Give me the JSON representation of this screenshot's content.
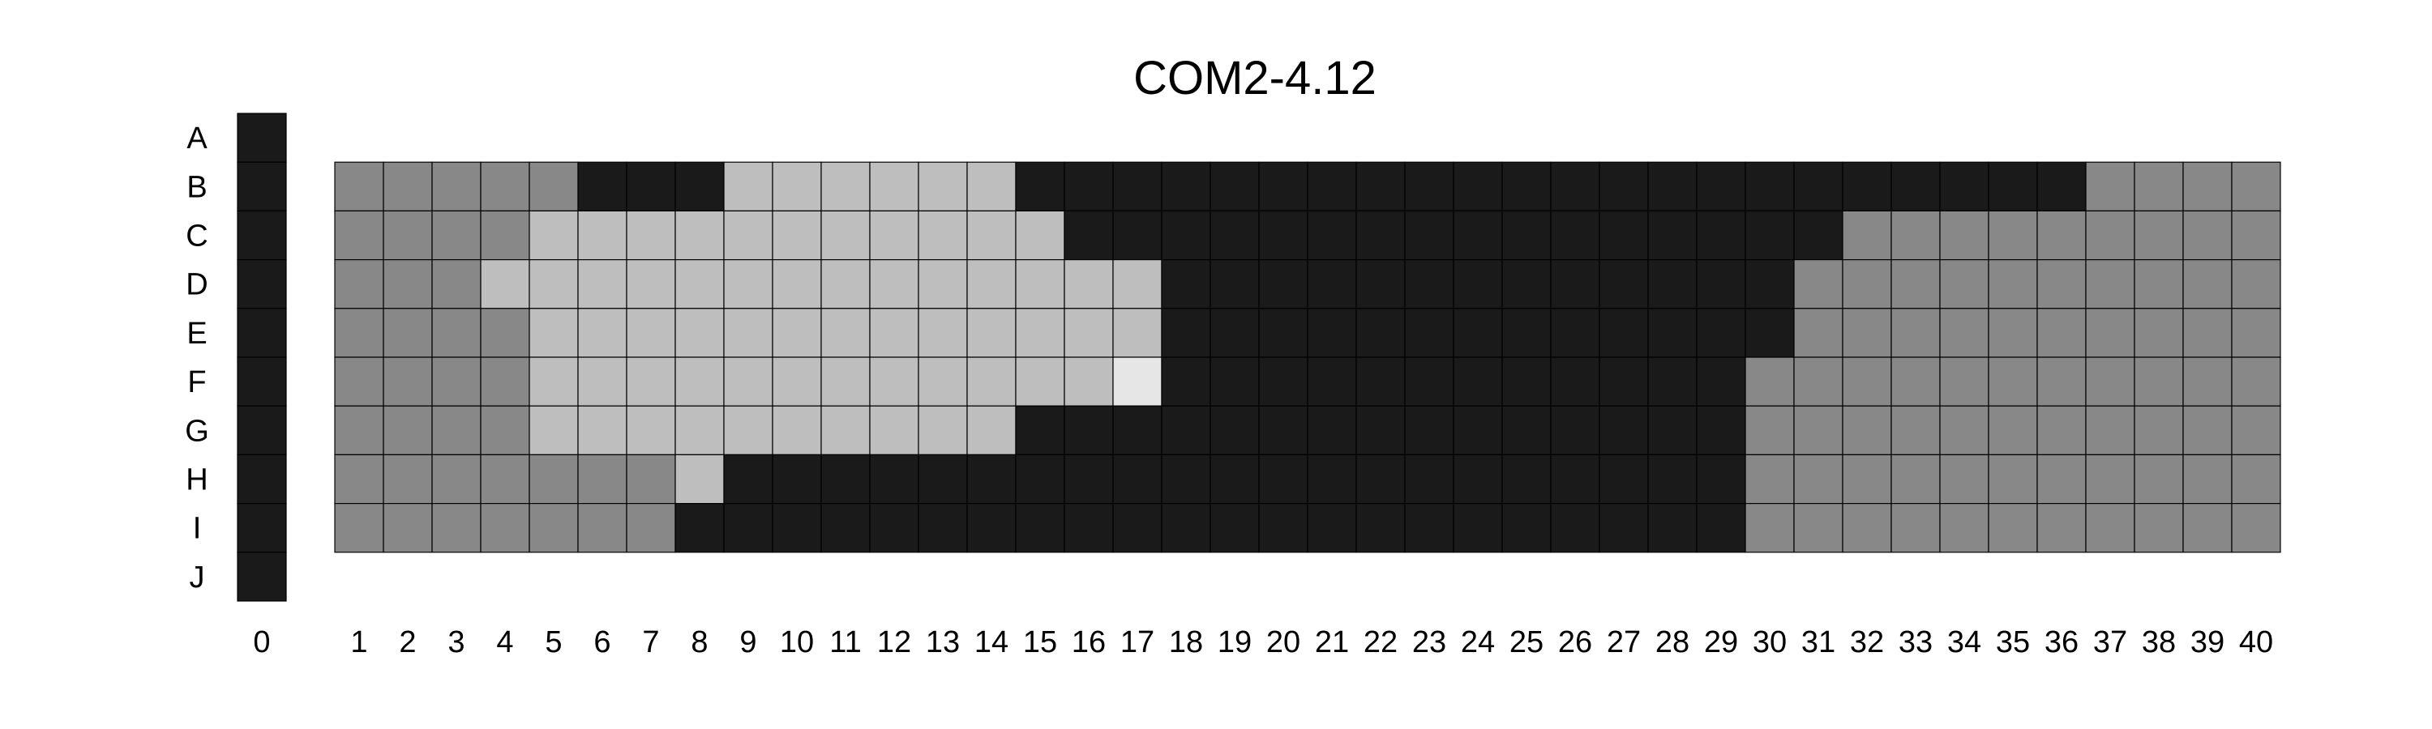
{
  "chart_data": {
    "type": "heatmap",
    "title": "COM2-4.12",
    "rows": [
      "A",
      "B",
      "C",
      "D",
      "E",
      "F",
      "G",
      "H",
      "I",
      "J"
    ],
    "columns": [
      "0",
      "1",
      "2",
      "3",
      "4",
      "5",
      "6",
      "7",
      "8",
      "9",
      "10",
      "11",
      "12",
      "13",
      "14",
      "15",
      "16",
      "17",
      "18",
      "19",
      "20",
      "21",
      "22",
      "23",
      "24",
      "25",
      "26",
      "27",
      "28",
      "29",
      "30",
      "31",
      "32",
      "33",
      "34",
      "35",
      "36",
      "37",
      "38",
      "39",
      "40"
    ],
    "column_zero_rows": [
      "A",
      "B",
      "C",
      "D",
      "E",
      "F",
      "G",
      "H",
      "I",
      "J"
    ],
    "plate_rows": [
      "B",
      "C",
      "D",
      "E",
      "F",
      "G",
      "H",
      "I"
    ],
    "levels": {
      "0": "#1a1a1a",
      "1": "#888888",
      "2": "#bebebe",
      "3": "#e6e6e6"
    },
    "column_zero_level": 0,
    "values": [
      [
        1,
        1,
        1,
        1,
        1,
        0,
        0,
        0,
        2,
        2,
        2,
        2,
        2,
        2,
        0,
        0,
        0,
        0,
        0,
        0,
        0,
        0,
        0,
        0,
        0,
        0,
        0,
        0,
        0,
        0,
        0,
        0,
        0,
        0,
        0,
        0,
        1,
        1,
        1,
        1
      ],
      [
        1,
        1,
        1,
        1,
        2,
        2,
        2,
        2,
        2,
        2,
        2,
        2,
        2,
        2,
        2,
        0,
        0,
        0,
        0,
        0,
        0,
        0,
        0,
        0,
        0,
        0,
        0,
        0,
        0,
        0,
        0,
        1,
        1,
        1,
        1,
        1,
        1,
        1,
        1,
        1
      ],
      [
        1,
        1,
        1,
        2,
        2,
        2,
        2,
        2,
        2,
        2,
        2,
        2,
        2,
        2,
        2,
        2,
        2,
        0,
        0,
        0,
        0,
        0,
        0,
        0,
        0,
        0,
        0,
        0,
        0,
        0,
        1,
        1,
        1,
        1,
        1,
        1,
        1,
        1,
        1,
        1
      ],
      [
        1,
        1,
        1,
        1,
        2,
        2,
        2,
        2,
        2,
        2,
        2,
        2,
        2,
        2,
        2,
        2,
        2,
        0,
        0,
        0,
        0,
        0,
        0,
        0,
        0,
        0,
        0,
        0,
        0,
        0,
        1,
        1,
        1,
        1,
        1,
        1,
        1,
        1,
        1,
        1
      ],
      [
        1,
        1,
        1,
        1,
        2,
        2,
        2,
        2,
        2,
        2,
        2,
        2,
        2,
        2,
        2,
        2,
        3,
        0,
        0,
        0,
        0,
        0,
        0,
        0,
        0,
        0,
        0,
        0,
        0,
        1,
        1,
        1,
        1,
        1,
        1,
        1,
        1,
        1,
        1,
        1
      ],
      [
        1,
        1,
        1,
        1,
        2,
        2,
        2,
        2,
        2,
        2,
        2,
        2,
        2,
        2,
        0,
        0,
        0,
        0,
        0,
        0,
        0,
        0,
        0,
        0,
        0,
        0,
        0,
        0,
        0,
        1,
        1,
        1,
        1,
        1,
        1,
        1,
        1,
        1,
        1,
        1
      ],
      [
        1,
        1,
        1,
        1,
        1,
        1,
        1,
        2,
        0,
        0,
        0,
        0,
        0,
        0,
        0,
        0,
        0,
        0,
        0,
        0,
        0,
        0,
        0,
        0,
        0,
        0,
        0,
        0,
        0,
        1,
        1,
        1,
        1,
        1,
        1,
        1,
        1,
        1,
        1,
        1
      ],
      [
        1,
        1,
        1,
        1,
        1,
        1,
        1,
        0,
        0,
        0,
        0,
        0,
        0,
        0,
        0,
        0,
        0,
        0,
        0,
        0,
        0,
        0,
        0,
        0,
        0,
        0,
        0,
        0,
        0,
        1,
        1,
        1,
        1,
        1,
        1,
        1,
        1,
        1,
        1,
        1
      ]
    ],
    "grid": true,
    "legend": "none"
  }
}
